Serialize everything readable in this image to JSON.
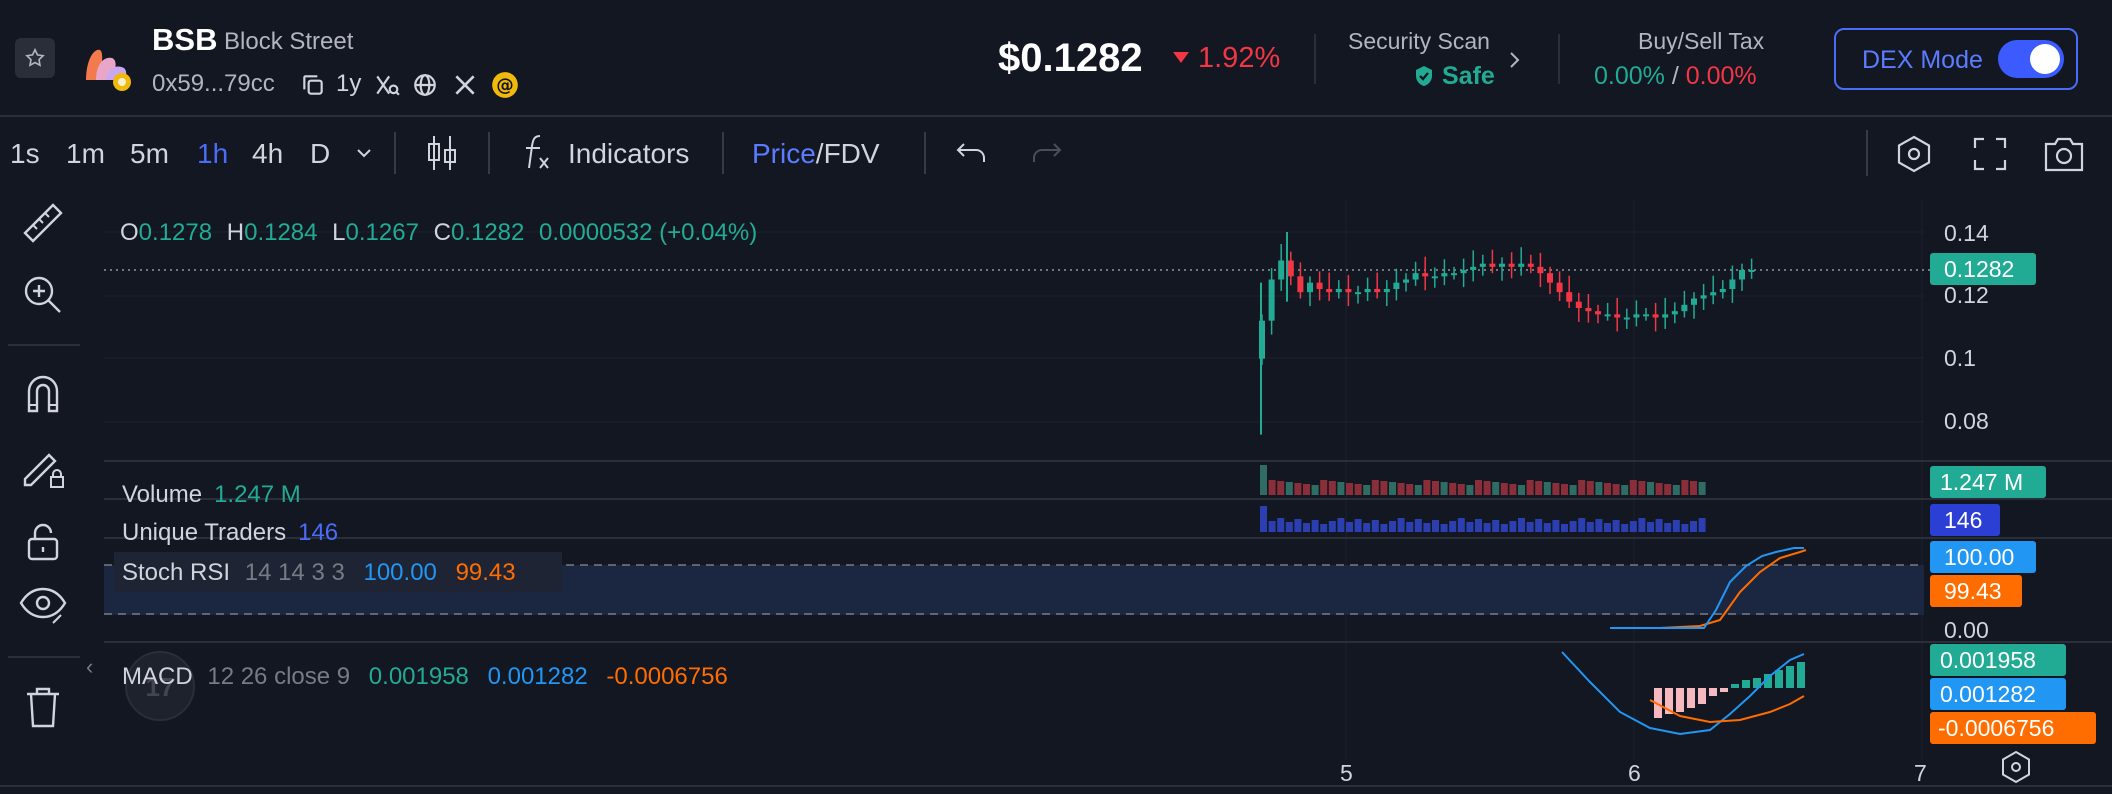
{
  "header": {
    "symbol": "BSB",
    "name": "Block Street",
    "address": "0x59...79cc",
    "age": "1y",
    "price": "$0.1282",
    "change": "1.92%",
    "security_title": "Security Scan",
    "security_value": "Safe",
    "tax_title": "Buy/Sell Tax",
    "buy_tax": "0.00%",
    "tax_sep": "/",
    "sell_tax": "0.00%",
    "dex_label": "DEX Mode",
    "dex_enabled": true
  },
  "toolbar": {
    "intervals": [
      "1s",
      "1m",
      "5m",
      "1h",
      "4h",
      "D"
    ],
    "active_interval": "1h",
    "indicators_label": "Indicators",
    "price_label": "Price",
    "sep": "/",
    "fdv_label": "FDV"
  },
  "legend": {
    "o_label": "O",
    "o_value": "0.1278",
    "h_label": "H",
    "h_value": "0.1284",
    "l_label": "L",
    "l_value": "0.1267",
    "c_label": "C",
    "c_value": "0.1282",
    "change": "0.0000532 (+0.04%)"
  },
  "indicators": {
    "volume_label": "Volume",
    "volume_value": "1.247 M",
    "traders_label": "Unique Traders",
    "traders_value": "146",
    "stoch_label": "Stoch RSI",
    "stoch_params": "14 14 3 3",
    "stoch_k": "100.00",
    "stoch_d": "99.43",
    "macd_label": "MACD",
    "macd_params": "12 26 close 9",
    "macd_hist": "0.001958",
    "macd_line": "0.001282",
    "macd_signal": "-0.0006756"
  },
  "axis": {
    "price_ticks": [
      "0.14",
      "0.12",
      "0.1",
      "0.08"
    ],
    "current_price": "0.1282",
    "volume_badge": "1.247 M",
    "traders_badge": "146",
    "stoch_k_badge": "100.00",
    "stoch_d_badge": "99.43",
    "stoch_zero": "0.00",
    "macd_hist_badge": "0.001958",
    "macd_line_badge": "0.001282",
    "macd_signal_badge": "-0.0006756",
    "time_ticks": [
      "5",
      "6",
      "7"
    ]
  },
  "colors": {
    "up": "#22ab94",
    "down": "#f23645",
    "accent": "#4a6cf7",
    "macd_line": "#2962ff",
    "macd_signal": "#ff6d00"
  }
}
